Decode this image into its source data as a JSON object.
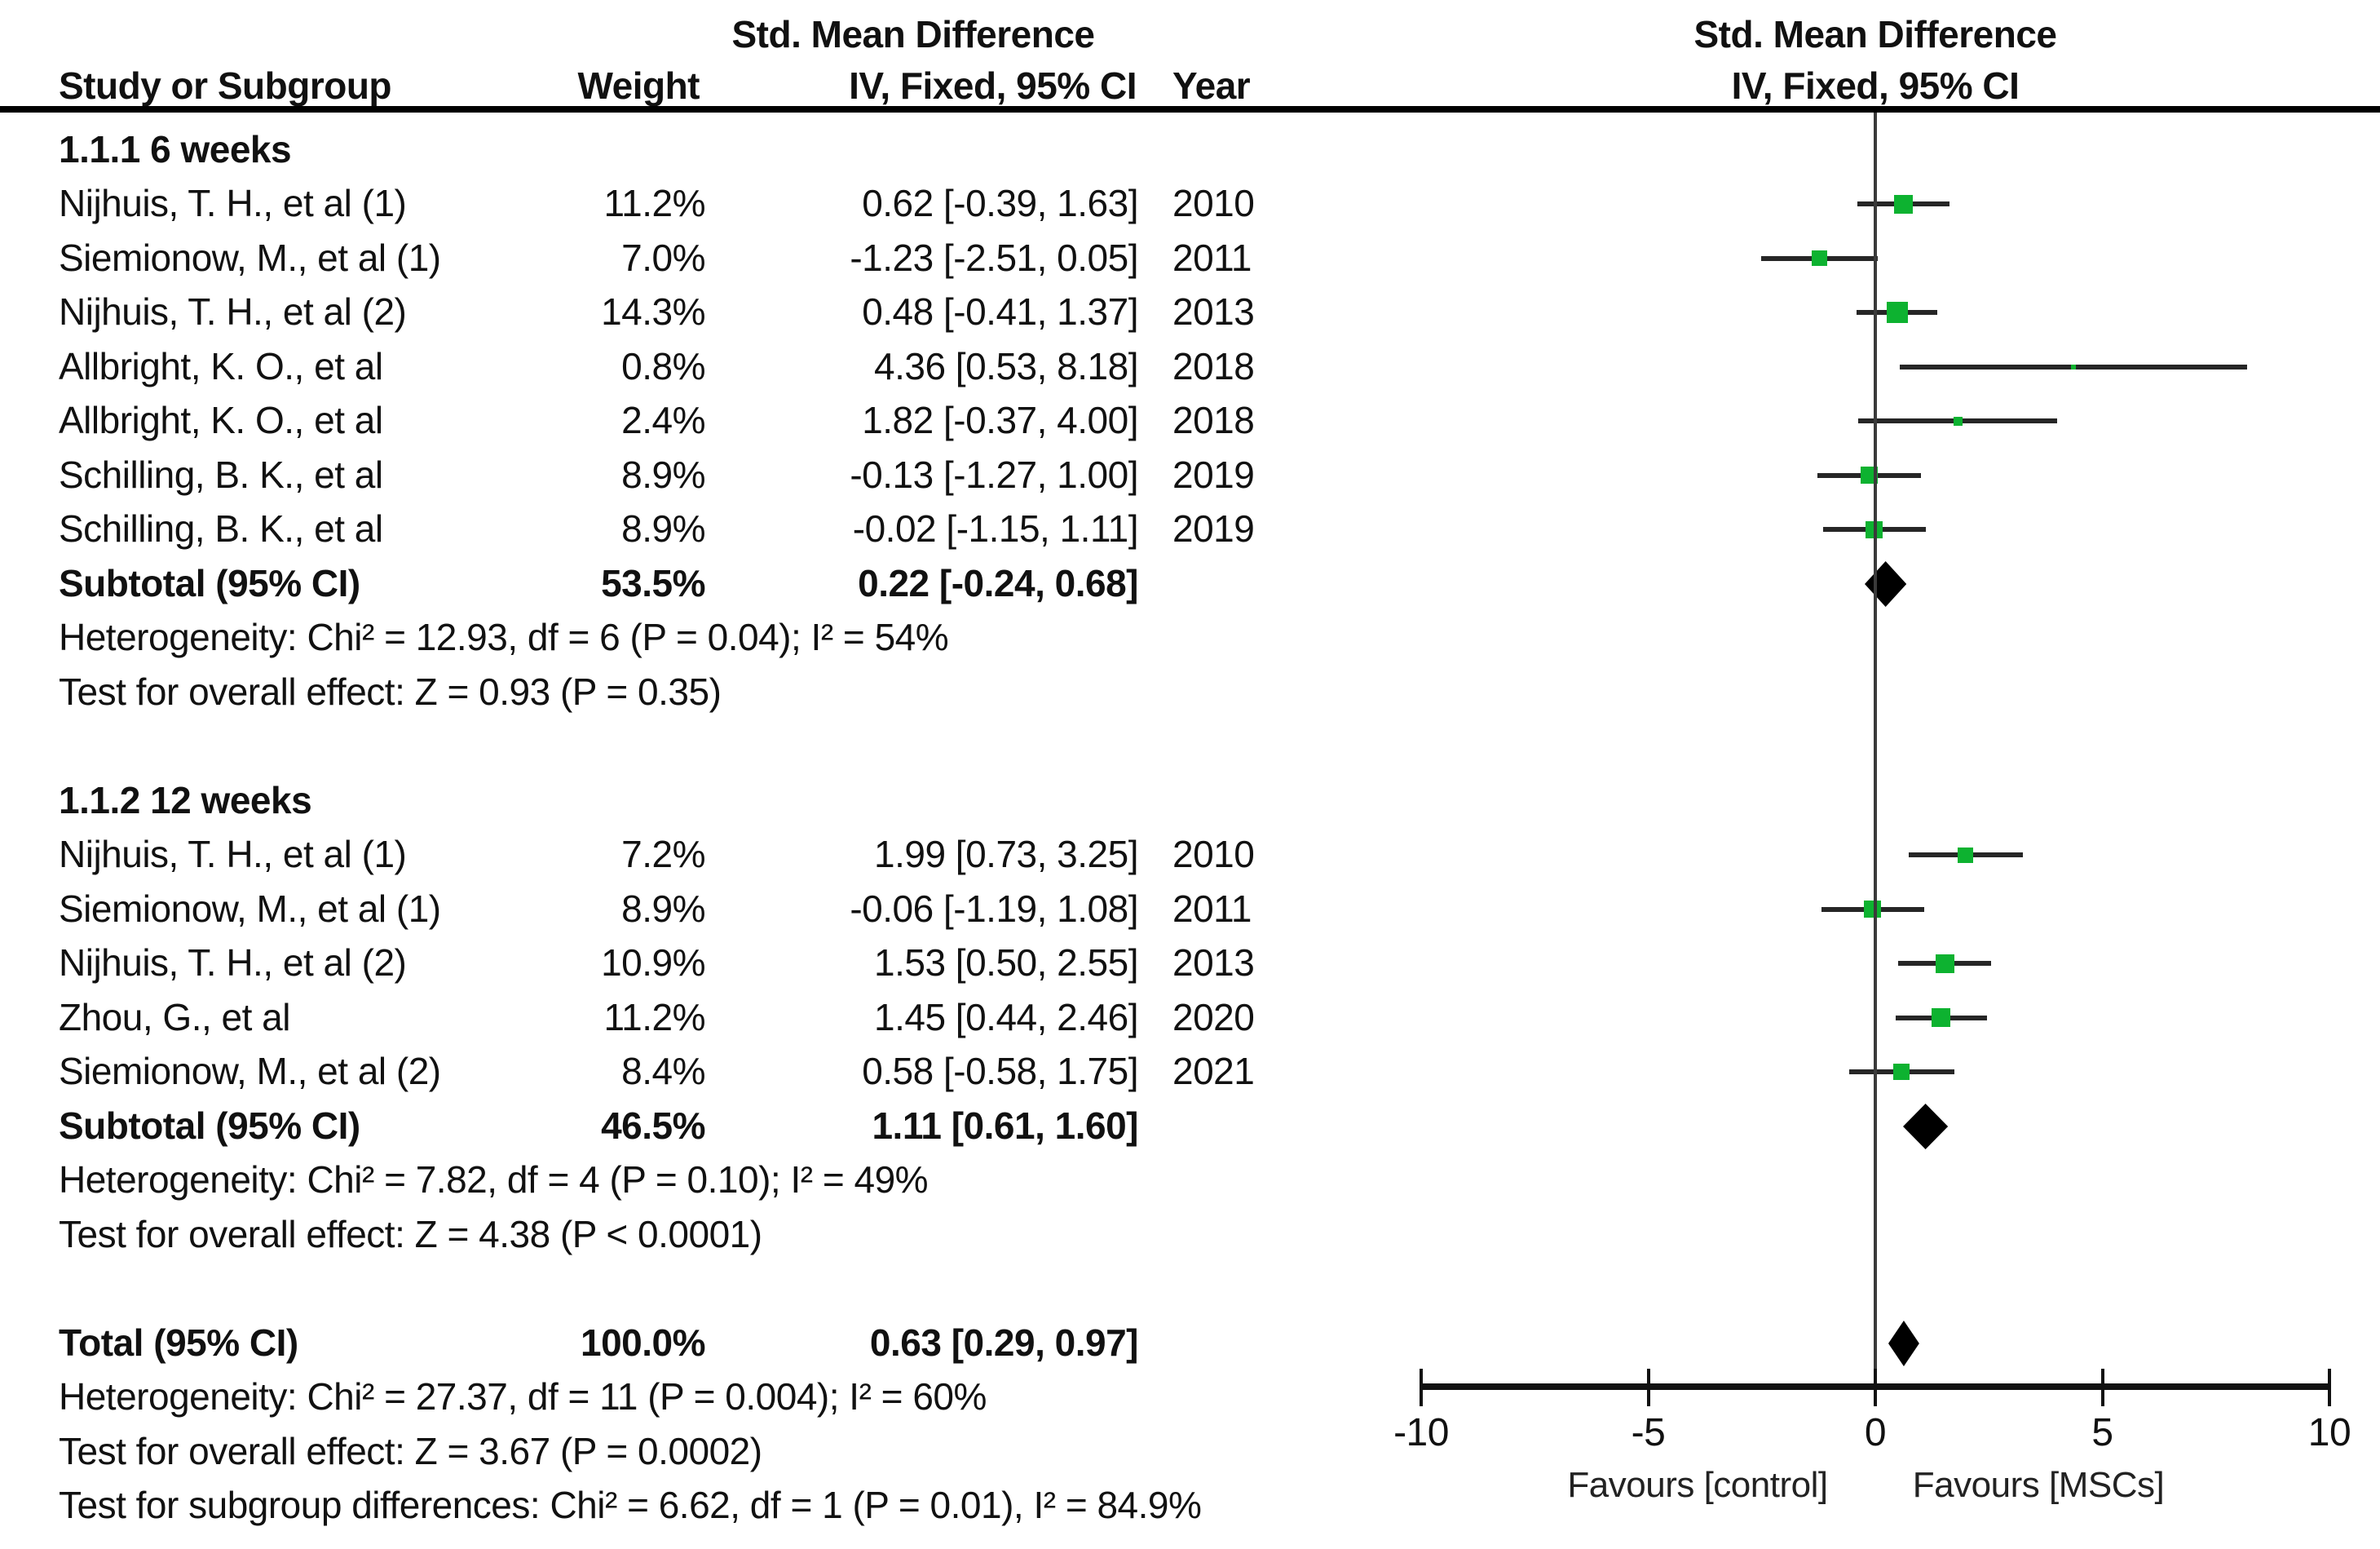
{
  "header": {
    "left_effect_title": "Std. Mean Difference",
    "columns": {
      "study": "Study or Subgroup",
      "weight": "Weight",
      "effect": "IV, Fixed, 95% CI",
      "year": "Year"
    }
  },
  "colors": {
    "marker_green": "#0db230",
    "line_dark": "#262626",
    "diamond_black": "#000000",
    "text": "#111111"
  },
  "chart_data": {
    "type": "forest",
    "effect_label": "Std. Mean Difference",
    "method_label": "IV, Fixed, 95% CI",
    "axis": {
      "min": -10,
      "max": 10,
      "ticks": [
        -10,
        -5,
        0,
        5,
        10
      ]
    },
    "favours_left": "Favours [control]",
    "favours_right": "Favours [MSCs]",
    "groups": [
      {
        "label": "1.1.1 6 weeks",
        "studies": [
          {
            "name": "Nijhuis, T. H., et al (1)",
            "weight": "11.2%",
            "weight_pct": 11.2,
            "est": 0.62,
            "lo": -0.39,
            "hi": 1.63,
            "ci": "0.62 [-0.39, 1.63]",
            "year": "2010"
          },
          {
            "name": "Siemionow, M., et al (1)",
            "weight": "7.0%",
            "weight_pct": 7.0,
            "est": -1.23,
            "lo": -2.51,
            "hi": 0.05,
            "ci": "-1.23 [-2.51, 0.05]",
            "year": "2011"
          },
          {
            "name": "Nijhuis, T. H., et al (2)",
            "weight": "14.3%",
            "weight_pct": 14.3,
            "est": 0.48,
            "lo": -0.41,
            "hi": 1.37,
            "ci": "0.48 [-0.41, 1.37]",
            "year": "2013"
          },
          {
            "name": "Allbright, K. O., et al",
            "weight": "0.8%",
            "weight_pct": 0.8,
            "est": 4.36,
            "lo": 0.53,
            "hi": 8.18,
            "ci": "4.36 [0.53, 8.18]",
            "year": "2018"
          },
          {
            "name": "Allbright, K. O., et al",
            "weight": "2.4%",
            "weight_pct": 2.4,
            "est": 1.82,
            "lo": -0.37,
            "hi": 4.0,
            "ci": "1.82 [-0.37, 4.00]",
            "year": "2018"
          },
          {
            "name": "Schilling, B. K., et al",
            "weight": "8.9%",
            "weight_pct": 8.9,
            "est": -0.13,
            "lo": -1.27,
            "hi": 1.0,
            "ci": "-0.13 [-1.27, 1.00]",
            "year": "2019"
          },
          {
            "name": "Schilling, B. K., et al",
            "weight": "8.9%",
            "weight_pct": 8.9,
            "est": -0.02,
            "lo": -1.15,
            "hi": 1.11,
            "ci": "-0.02 [-1.15, 1.11]",
            "year": "2019"
          }
        ],
        "subtotal": {
          "label": "Subtotal (95% CI)",
          "weight": "53.5%",
          "est": 0.22,
          "lo": -0.24,
          "hi": 0.68,
          "ci": "0.22 [-0.24, 0.68]"
        },
        "heterogeneity": "Heterogeneity: Chi² = 12.93, df = 6 (P = 0.04); I² = 54%",
        "overall": "Test for overall effect: Z = 0.93 (P = 0.35)"
      },
      {
        "label": "1.1.2 12 weeks",
        "studies": [
          {
            "name": "Nijhuis, T. H., et al (1)",
            "weight": "7.2%",
            "weight_pct": 7.2,
            "est": 1.99,
            "lo": 0.73,
            "hi": 3.25,
            "ci": "1.99 [0.73, 3.25]",
            "year": "2010"
          },
          {
            "name": "Siemionow, M., et al (1)",
            "weight": "8.9%",
            "weight_pct": 8.9,
            "est": -0.06,
            "lo": -1.19,
            "hi": 1.08,
            "ci": "-0.06 [-1.19, 1.08]",
            "year": "2011"
          },
          {
            "name": "Nijhuis, T. H., et al (2)",
            "weight": "10.9%",
            "weight_pct": 10.9,
            "est": 1.53,
            "lo": 0.5,
            "hi": 2.55,
            "ci": "1.53 [0.50, 2.55]",
            "year": "2013"
          },
          {
            "name": "Zhou, G., et al",
            "weight": "11.2%",
            "weight_pct": 11.2,
            "est": 1.45,
            "lo": 0.44,
            "hi": 2.46,
            "ci": "1.45 [0.44, 2.46]",
            "year": "2020"
          },
          {
            "name": "Siemionow, M., et al (2)",
            "weight": "8.4%",
            "weight_pct": 8.4,
            "est": 0.58,
            "lo": -0.58,
            "hi": 1.75,
            "ci": "0.58 [-0.58, 1.75]",
            "year": "2021"
          }
        ],
        "subtotal": {
          "label": "Subtotal (95% CI)",
          "weight": "46.5%",
          "est": 1.11,
          "lo": 0.61,
          "hi": 1.6,
          "ci": "1.11 [0.61, 1.60]"
        },
        "heterogeneity": "Heterogeneity: Chi² = 7.82, df = 4 (P = 0.10); I² = 49%",
        "overall": "Test for overall effect: Z = 4.38 (P < 0.0001)"
      }
    ],
    "total": {
      "label": "Total (95% CI)",
      "weight": "100.0%",
      "est": 0.63,
      "lo": 0.29,
      "hi": 0.97,
      "ci": "0.63 [0.29, 0.97]"
    },
    "total_heterogeneity": "Heterogeneity: Chi² = 27.37, df = 11 (P = 0.004); I² = 60%",
    "total_overall": "Test for overall effect: Z = 3.67 (P = 0.0002)",
    "subgroup_diff": "Test for subgroup differences: Chi² = 6.62, df = 1 (P = 0.01), I² = 84.9%"
  }
}
